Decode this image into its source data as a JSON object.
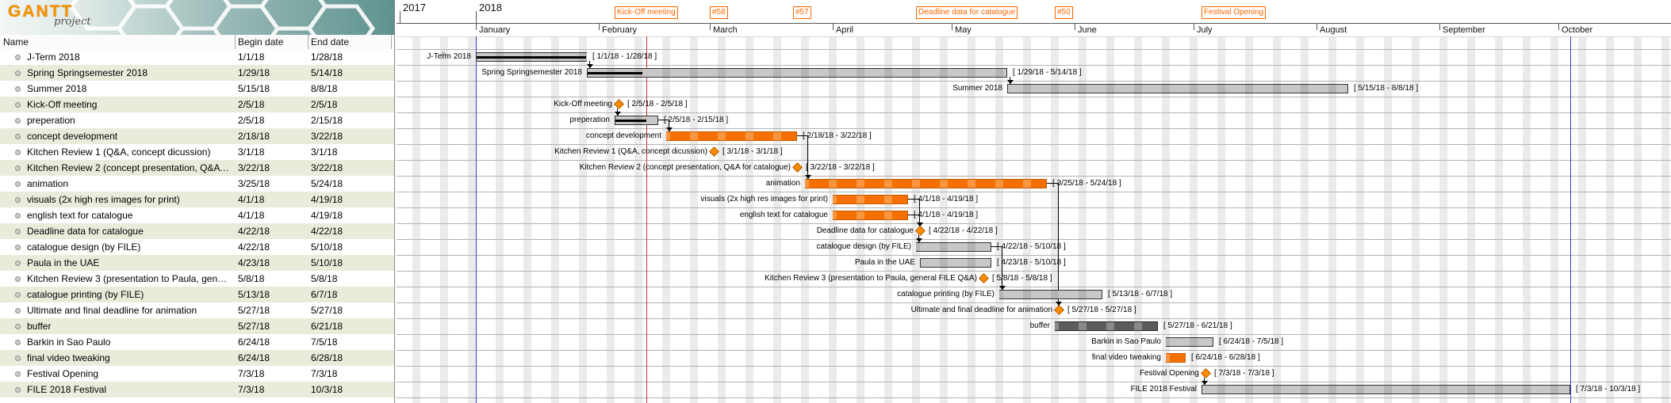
{
  "app": {
    "title": "GanttProject",
    "logo_text": "GANTT",
    "logo_subtext": "project"
  },
  "table": {
    "columns": [
      "Name",
      "Begin date",
      "End date"
    ]
  },
  "tasks": [
    {
      "name": "J-Term 2018",
      "begin": "1/1/18",
      "end": "1/28/18",
      "type": "task",
      "color": "gray",
      "progress": 1
    },
    {
      "name": "Spring Springsemester 2018",
      "begin": "1/29/18",
      "end": "5/14/18",
      "type": "task",
      "color": "gray",
      "progress": 0.13
    },
    {
      "name": "Summer 2018",
      "begin": "5/15/18",
      "end": "8/8/18",
      "type": "task",
      "color": "gray",
      "progress": 0
    },
    {
      "name": "Kick-Off meeting",
      "begin": "2/5/18",
      "end": "2/5/18",
      "type": "milestone",
      "color": "orange",
      "progress": 0
    },
    {
      "name": "preperation",
      "begin": "2/5/18",
      "end": "2/15/18",
      "type": "task",
      "color": "gray",
      "progress": 0.73
    },
    {
      "name": "concept development",
      "begin": "2/18/18",
      "end": "3/22/18",
      "type": "task",
      "color": "orange",
      "progress": 0
    },
    {
      "name": "Kitchen Review 1 (Q&A, concept dicussion)",
      "begin": "3/1/18",
      "end": "3/1/18",
      "type": "milestone",
      "color": "orange",
      "progress": 0
    },
    {
      "name": "Kitchen Review 2 (concept presentation, Q&A for catalogue)",
      "begin": "3/22/18",
      "end": "3/22/18",
      "type": "milestone",
      "color": "orange",
      "progress": 0
    },
    {
      "name": "animation",
      "begin": "3/25/18",
      "end": "5/24/18",
      "type": "task",
      "color": "orange",
      "progress": 0
    },
    {
      "name": "visuals (2x high res images for print)",
      "begin": "4/1/18",
      "end": "4/19/18",
      "type": "task",
      "color": "orange",
      "progress": 0
    },
    {
      "name": "english text for catalogue",
      "begin": "4/1/18",
      "end": "4/19/18",
      "type": "task",
      "color": "orange",
      "progress": 0
    },
    {
      "name": "Deadline data for catalogue",
      "begin": "4/22/18",
      "end": "4/22/18",
      "type": "milestone",
      "color": "orange",
      "progress": 0
    },
    {
      "name": "catalogue design (by FILE)",
      "begin": "4/22/18",
      "end": "5/10/18",
      "type": "task",
      "color": "gray",
      "progress": 0
    },
    {
      "name": "Paula in the UAE",
      "begin": "4/23/18",
      "end": "5/10/18",
      "type": "task",
      "color": "gray",
      "progress": 0
    },
    {
      "name": "Kitchen Review 3 (presentation to Paula, general FILE Q&A)",
      "begin": "5/8/18",
      "end": "5/8/18",
      "type": "milestone",
      "color": "orange",
      "progress": 0
    },
    {
      "name": "catalogue printing (by FILE)",
      "begin": "5/13/18",
      "end": "6/7/18",
      "type": "task",
      "color": "gray",
      "progress": 0
    },
    {
      "name": "Ultimate and final deadline for animation",
      "begin": "5/27/18",
      "end": "5/27/18",
      "type": "milestone",
      "color": "orange",
      "progress": 0
    },
    {
      "name": "buffer",
      "begin": "5/27/18",
      "end": "6/21/18",
      "type": "task",
      "color": "dark",
      "progress": 0
    },
    {
      "name": "Barkin in Sao Paulo",
      "begin": "6/24/18",
      "end": "7/5/18",
      "type": "task",
      "color": "gray",
      "progress": 0
    },
    {
      "name": "final video tweaking",
      "begin": "6/24/18",
      "end": "6/28/18",
      "type": "task",
      "color": "orange",
      "progress": 0
    },
    {
      "name": "Festival Opening",
      "begin": "7/3/18",
      "end": "7/3/18",
      "type": "milestone",
      "color": "orange",
      "progress": 0
    },
    {
      "name": "FILE 2018 Festival",
      "begin": "7/3/18",
      "end": "10/3/18",
      "type": "task",
      "color": "gray",
      "progress": 0
    }
  ],
  "chart": {
    "years": [
      {
        "label": "2017"
      },
      {
        "label": "2018",
        "date": "1/1/18"
      }
    ],
    "months": [
      {
        "label": "January",
        "date": "1/1/18"
      },
      {
        "label": "February",
        "date": "2/1/18"
      },
      {
        "label": "March",
        "date": "3/1/18"
      },
      {
        "label": "April",
        "date": "4/1/18"
      },
      {
        "label": "May",
        "date": "5/1/18"
      },
      {
        "label": "June",
        "date": "6/1/18"
      },
      {
        "label": "July",
        "date": "7/1/18"
      },
      {
        "label": "August",
        "date": "8/1/18"
      },
      {
        "label": "September",
        "date": "9/1/18"
      },
      {
        "label": "October",
        "date": "10/1/18"
      }
    ],
    "timeline_tags": [
      {
        "label": "Kick-Off meeting",
        "date": "2/5/18"
      },
      {
        "label": "#58",
        "date": "3/1/18"
      },
      {
        "label": "#57",
        "date": "3/22/18"
      },
      {
        "label": "Deadline data for catalogue",
        "date": "4/22/18"
      },
      {
        "label": "#50",
        "date": "5/27/18"
      },
      {
        "label": "Festival Opening",
        "date": "7/3/18"
      }
    ],
    "markers": {
      "project_start": "1/1/18",
      "today": "2/13/18",
      "project_end": "10/4/18"
    },
    "dependencies": [
      [
        0,
        1
      ],
      [
        1,
        2
      ],
      [
        3,
        4
      ],
      [
        4,
        5
      ],
      [
        5,
        8
      ],
      [
        9,
        11
      ],
      [
        10,
        11
      ],
      [
        11,
        12
      ],
      [
        12,
        15
      ],
      [
        8,
        16
      ],
      [
        20,
        21
      ]
    ],
    "date_range_format": "[ begin - end ]",
    "palette": {
      "task_bar": "#c8c8c8",
      "task_bar_weekend": "#b4b4b4",
      "task_border": "#333333",
      "orange_bar": "#f57000",
      "orange_bar_weekend": "#fb9640",
      "orange_border": "#c85a00",
      "dark_bar": "#5c5c5c",
      "dark_bar_weekend": "#8a8a8a",
      "milestone": "#ff8c00",
      "progress": "#000000",
      "today_line": "#cc3333",
      "boundary_line": "#3c3cc8",
      "tag_color": "#ff6600",
      "weekend_stripe": "#ebebeb",
      "row_alt": "#ebebdc",
      "grid_line": "#b3b3b3",
      "banner_teal": "#5e928e",
      "logo_orange": "#f39200"
    }
  }
}
